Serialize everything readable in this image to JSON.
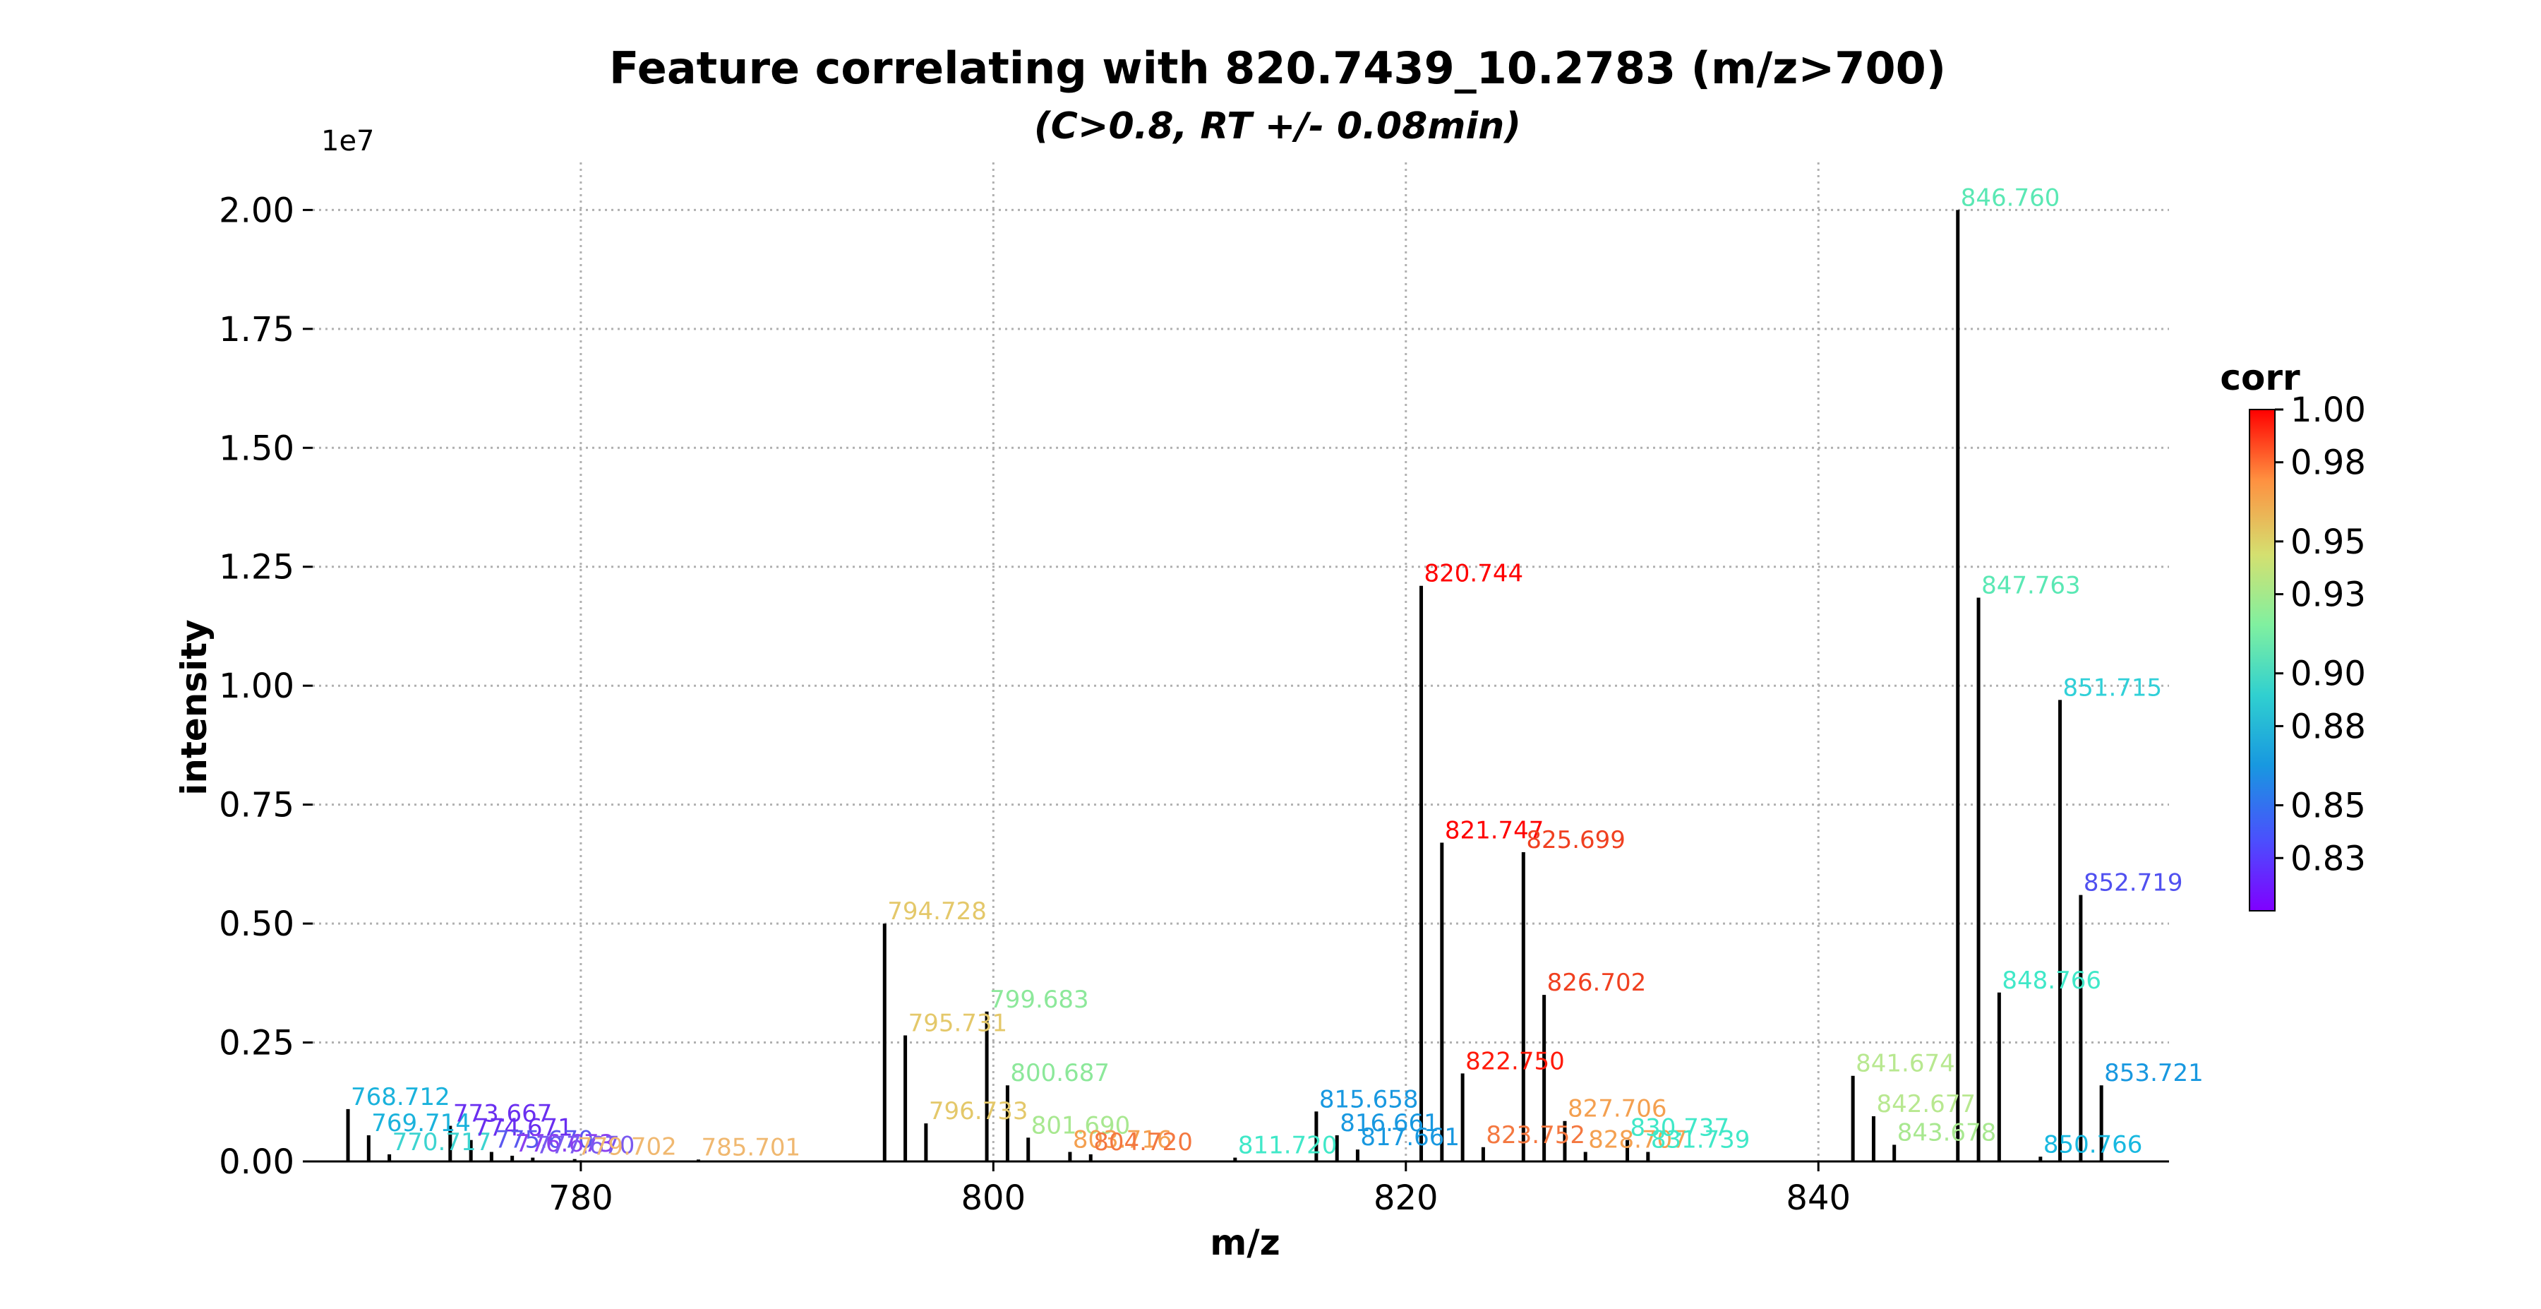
{
  "chart_data": {
    "type": "bar",
    "title": "Feature correlating with 820.7439_10.2783 (m/z>700)",
    "subtitle": "(C>0.8, RT +/- 0.08min)",
    "xlabel": "m/z",
    "ylabel": "intensity",
    "y_offset_label": "1e7",
    "y_scale": 10000000,
    "xlim": [
      767,
      857
    ],
    "ylim": [
      0,
      2.1
    ],
    "x_ticks": [
      780,
      800,
      820,
      840
    ],
    "x_tick_labels": [
      "780",
      "800",
      "820",
      "840"
    ],
    "y_ticks": [
      0,
      0.25,
      0.5,
      0.75,
      1.0,
      1.25,
      1.5,
      1.75,
      2.0
    ],
    "y_tick_labels": [
      "0.00",
      "0.25",
      "0.50",
      "0.75",
      "1.00",
      "1.25",
      "1.50",
      "1.75",
      "2.00"
    ],
    "grid": true,
    "grid_style": "dotted",
    "bar_color": "#000000",
    "colorbar": {
      "title": "corr",
      "range": [
        0.81,
        1.0
      ],
      "ticks": [
        0.83,
        0.85,
        0.88,
        0.9,
        0.93,
        0.95,
        0.98,
        1.0
      ],
      "tick_labels": [
        "0.83",
        "0.85",
        "0.88",
        "0.90",
        "0.93",
        "0.95",
        "0.98",
        "1.00"
      ],
      "colormap": "rainbow",
      "position": "right"
    },
    "peaks": [
      {
        "mz": 768.712,
        "y": 0.11,
        "label": "768.712",
        "color": "#1ab2dc"
      },
      {
        "mz": 769.714,
        "y": 0.055,
        "label": "769.714",
        "color": "#1ab2dc"
      },
      {
        "mz": 770.717,
        "y": 0.015,
        "label": "770.717",
        "color": "#3dd4d0"
      },
      {
        "mz": 773.667,
        "y": 0.075,
        "label": "773.667",
        "color": "#6a2ef0"
      },
      {
        "mz": 774.671,
        "y": 0.045,
        "label": "774.671",
        "color": "#6a2ef0"
      },
      {
        "mz": 775.67,
        "y": 0.02,
        "label": "775.670",
        "color": "#5a58f0"
      },
      {
        "mz": 776.673,
        "y": 0.012,
        "label": "776.673",
        "color": "#8a40f0"
      },
      {
        "mz": 777.67,
        "y": 0.008,
        "label": "777.670",
        "color": "#7a5af0"
      },
      {
        "mz": 779.702,
        "y": 0.005,
        "label": "779.702",
        "color": "#f0b870"
      },
      {
        "mz": 785.701,
        "y": 0.004,
        "label": "785.701",
        "color": "#f0b870"
      },
      {
        "mz": 794.728,
        "y": 0.5,
        "label": "794.728",
        "color": "#e4c86a"
      },
      {
        "mz": 795.731,
        "y": 0.265,
        "label": "795.731",
        "color": "#e4c86a"
      },
      {
        "mz": 796.733,
        "y": 0.08,
        "label": "796.733",
        "color": "#e4c86a"
      },
      {
        "mz": 799.683,
        "y": 0.315,
        "label": "799.683",
        "color": "#8ce89a"
      },
      {
        "mz": 800.687,
        "y": 0.16,
        "label": "800.687",
        "color": "#8ce89a"
      },
      {
        "mz": 801.69,
        "y": 0.05,
        "label": "801.690",
        "color": "#a8e890"
      },
      {
        "mz": 803.716,
        "y": 0.02,
        "label": "803.716",
        "color": "#f4a050"
      },
      {
        "mz": 804.72,
        "y": 0.015,
        "label": "804.720",
        "color": "#f47840"
      },
      {
        "mz": 811.72,
        "y": 0.008,
        "label": "811.720",
        "color": "#40e8c8"
      },
      {
        "mz": 815.658,
        "y": 0.105,
        "label": "815.658",
        "color": "#1898e0"
      },
      {
        "mz": 816.661,
        "y": 0.055,
        "label": "816.661",
        "color": "#1898e0"
      },
      {
        "mz": 817.661,
        "y": 0.025,
        "label": "817.661",
        "color": "#1898e0"
      },
      {
        "mz": 820.744,
        "y": 1.21,
        "label": "820.744",
        "color": "#ff0000"
      },
      {
        "mz": 821.747,
        "y": 0.67,
        "label": "821.747",
        "color": "#ff0000"
      },
      {
        "mz": 822.75,
        "y": 0.185,
        "label": "822.750",
        "color": "#ff1a0a"
      },
      {
        "mz": 823.752,
        "y": 0.03,
        "label": "823.752",
        "color": "#f47840"
      },
      {
        "mz": 825.699,
        "y": 0.65,
        "label": "825.699",
        "color": "#f04020"
      },
      {
        "mz": 826.702,
        "y": 0.35,
        "label": "826.702",
        "color": "#f04020"
      },
      {
        "mz": 827.706,
        "y": 0.085,
        "label": "827.706",
        "color": "#f4a050"
      },
      {
        "mz": 828.707,
        "y": 0.02,
        "label": "828.707",
        "color": "#f4a050"
      },
      {
        "mz": 830.737,
        "y": 0.045,
        "label": "830.737",
        "color": "#40e8c8"
      },
      {
        "mz": 831.739,
        "y": 0.02,
        "label": "831.739",
        "color": "#40e8c8"
      },
      {
        "mz": 841.674,
        "y": 0.18,
        "label": "841.674",
        "color": "#b8e890"
      },
      {
        "mz": 842.677,
        "y": 0.095,
        "label": "842.677",
        "color": "#b8e890"
      },
      {
        "mz": 843.678,
        "y": 0.035,
        "label": "843.678",
        "color": "#a8e890"
      },
      {
        "mz": 846.76,
        "y": 2.0,
        "label": "846.760",
        "color": "#5ae8b4"
      },
      {
        "mz": 847.763,
        "y": 1.185,
        "label": "847.763",
        "color": "#5ae8b4"
      },
      {
        "mz": 848.766,
        "y": 0.355,
        "label": "848.766",
        "color": "#40e8c8"
      },
      {
        "mz": 850.766,
        "y": 0.01,
        "label": "850.766",
        "color": "#18b8e0"
      },
      {
        "mz": 851.715,
        "y": 0.97,
        "label": "851.715",
        "color": "#30d0d8"
      },
      {
        "mz": 852.719,
        "y": 0.56,
        "label": "852.719",
        "color": "#5050f0"
      },
      {
        "mz": 853.721,
        "y": 0.16,
        "label": "853.721",
        "color": "#1898e0"
      }
    ]
  }
}
